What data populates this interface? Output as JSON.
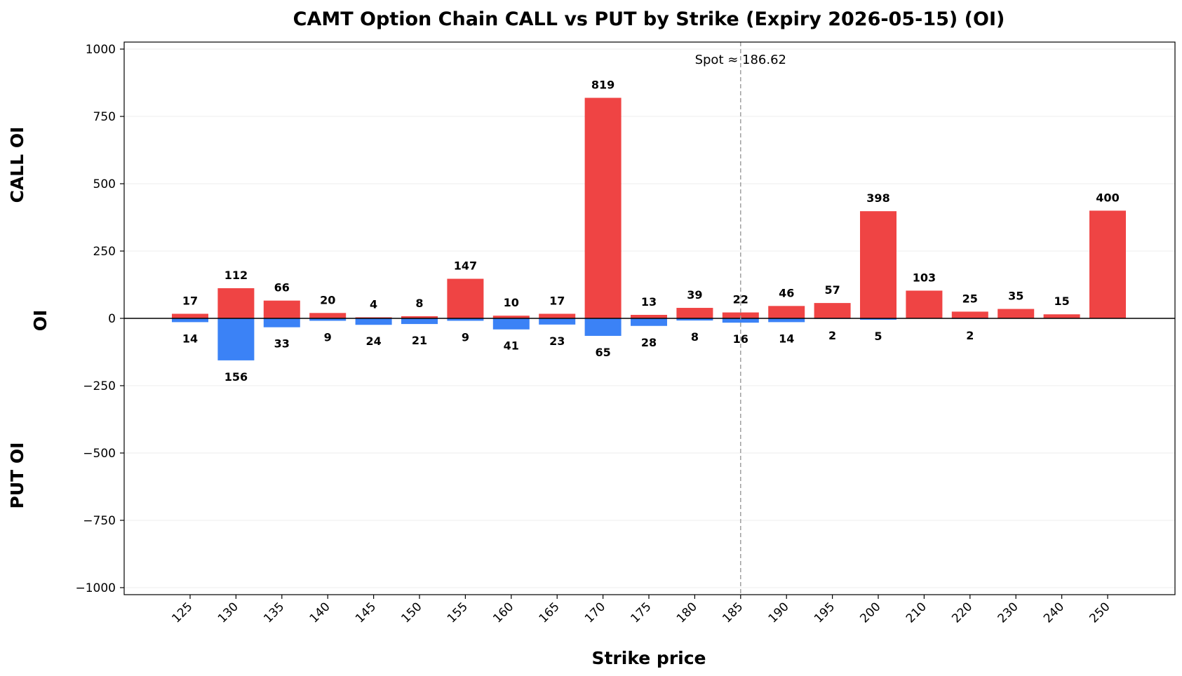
{
  "chart_data": {
    "type": "bar",
    "title": "CAMT Option Chain CALL vs PUT by Strike (Expiry 2026-05-15) (OI)",
    "xlabel": "Strike price",
    "ylabel": "OI",
    "side_labels": {
      "top": "CALL OI",
      "bottom": "PUT OI"
    },
    "categories": [
      "125",
      "130",
      "135",
      "140",
      "145",
      "150",
      "155",
      "160",
      "165",
      "170",
      "175",
      "180",
      "185",
      "190",
      "195",
      "200",
      "210",
      "220",
      "230",
      "240",
      "250"
    ],
    "series": [
      {
        "name": "CALL",
        "color": "#ef4444",
        "values": [
          17,
          112,
          66,
          20,
          4,
          8,
          147,
          10,
          17,
          819,
          13,
          39,
          22,
          46,
          57,
          398,
          103,
          25,
          35,
          15,
          400
        ]
      },
      {
        "name": "PUT",
        "color": "#3b82f6",
        "values": [
          14,
          156,
          33,
          9,
          24,
          21,
          9,
          41,
          23,
          65,
          28,
          8,
          16,
          14,
          2,
          5,
          0,
          2,
          0,
          0,
          0
        ]
      }
    ],
    "call_labels": [
      "17",
      "112",
      "66",
      "20",
      "4",
      "8",
      "147",
      "10",
      "17",
      "819",
      "13",
      "39",
      "22",
      "46",
      "57",
      "398",
      "103",
      "25",
      "35",
      "15",
      "400"
    ],
    "put_labels": [
      "14",
      "156",
      "33",
      "9",
      "24",
      "21",
      "9",
      "41",
      "23",
      "65",
      "28",
      "8",
      "16",
      "14",
      "2",
      "5",
      "",
      "2",
      "",
      "",
      ""
    ],
    "ylim": [
      -1000,
      1000
    ],
    "yticks": [
      1000,
      750,
      500,
      250,
      0,
      -250,
      -500,
      -750,
      -1000
    ],
    "ytick_labels": [
      "1000",
      "750",
      "500",
      "250",
      "0",
      "−250",
      "−500",
      "−750",
      "−1000"
    ],
    "spot": {
      "category_index": 12,
      "label": "Spot ≈ 186.62"
    },
    "grid": true
  }
}
